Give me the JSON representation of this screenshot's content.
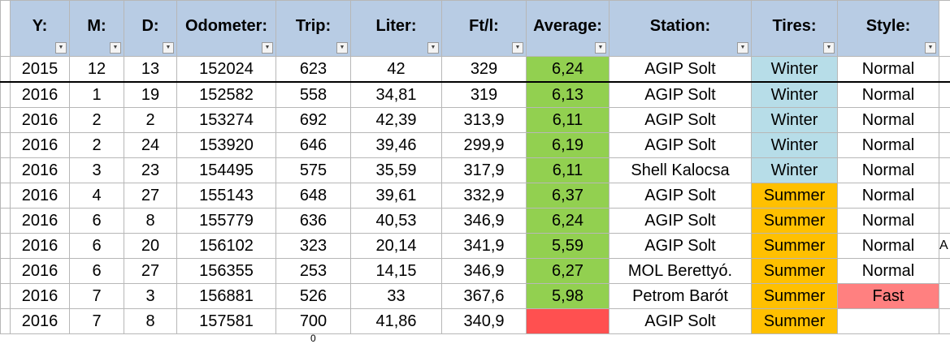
{
  "headers": [
    "Y:",
    "M:",
    "D:",
    "Odometer:",
    "Trip:",
    "Liter:",
    "Ft/l:",
    "Average:",
    "Station:",
    "Tires:",
    "Style:"
  ],
  "filter_icon": "chevron-down-icon",
  "colors": {
    "header": "#b8cce4",
    "average_fill": "#92d050",
    "average_empty": "#ff5050",
    "winter": "#b7dde8",
    "summer": "#ffc000",
    "fast": "#ff8080"
  },
  "rows": [
    {
      "y": "2015",
      "m": "12",
      "d": "13",
      "odometer": "152024",
      "trip": "623",
      "liter": "42",
      "ftl": "329",
      "average": "6,24",
      "station": "AGIP Solt",
      "tires": "Winter",
      "style": "Normal"
    },
    {
      "y": "2016",
      "m": "1",
      "d": "19",
      "odometer": "152582",
      "trip": "558",
      "liter": "34,81",
      "ftl": "319",
      "average": "6,13",
      "station": "AGIP Solt",
      "tires": "Winter",
      "style": "Normal"
    },
    {
      "y": "2016",
      "m": "2",
      "d": "2",
      "odometer": "153274",
      "trip": "692",
      "liter": "42,39",
      "ftl": "313,9",
      "average": "6,11",
      "station": "AGIP Solt",
      "tires": "Winter",
      "style": "Normal"
    },
    {
      "y": "2016",
      "m": "2",
      "d": "24",
      "odometer": "153920",
      "trip": "646",
      "liter": "39,46",
      "ftl": "299,9",
      "average": "6,19",
      "station": "AGIP Solt",
      "tires": "Winter",
      "style": "Normal"
    },
    {
      "y": "2016",
      "m": "3",
      "d": "23",
      "odometer": "154495",
      "trip": "575",
      "liter": "35,59",
      "ftl": "317,9",
      "average": "6,11",
      "station": "Shell Kalocsa",
      "tires": "Winter",
      "style": "Normal"
    },
    {
      "y": "2016",
      "m": "4",
      "d": "27",
      "odometer": "155143",
      "trip": "648",
      "liter": "39,61",
      "ftl": "332,9",
      "average": "6,37",
      "station": "AGIP Solt",
      "tires": "Summer",
      "style": "Normal"
    },
    {
      "y": "2016",
      "m": "6",
      "d": "8",
      "odometer": "155779",
      "trip": "636",
      "liter": "40,53",
      "ftl": "346,9",
      "average": "6,24",
      "station": "AGIP Solt",
      "tires": "Summer",
      "style": "Normal"
    },
    {
      "y": "2016",
      "m": "6",
      "d": "20",
      "odometer": "156102",
      "trip": "323",
      "liter": "20,14",
      "ftl": "341,9",
      "average": "5,59",
      "station": "AGIP Solt",
      "tires": "Summer",
      "style": "Normal"
    },
    {
      "y": "2016",
      "m": "6",
      "d": "27",
      "odometer": "156355",
      "trip": "253",
      "liter": "14,15",
      "ftl": "346,9",
      "average": "6,27",
      "station": "MOL Berettyó.",
      "tires": "Summer",
      "style": "Normal"
    },
    {
      "y": "2016",
      "m": "7",
      "d": "3",
      "odometer": "156881",
      "trip": "526",
      "liter": "33",
      "ftl": "367,6",
      "average": "5,98",
      "station": "Petrom Barót",
      "tires": "Summer",
      "style": "Fast"
    },
    {
      "y": "2016",
      "m": "7",
      "d": "8",
      "odometer": "157581",
      "trip": "700",
      "liter": "41,86",
      "ftl": "340,9",
      "average": "",
      "station": "AGIP Solt",
      "tires": "Summer",
      "style": ""
    }
  ],
  "partial_row_mark": "0",
  "edge_mark": "A"
}
